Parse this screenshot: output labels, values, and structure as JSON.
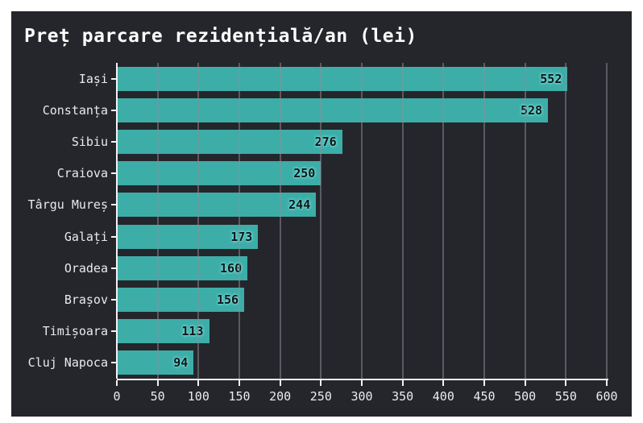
{
  "chart_data": {
    "type": "bar",
    "orientation": "horizontal",
    "title": "Preț parcare rezidențială/an (lei)",
    "categories": [
      "Iași",
      "Constanța",
      "Sibiu",
      "Craiova",
      "Târgu Mureș",
      "Galați",
      "Oradea",
      "Brașov",
      "Timișoara",
      "Cluj Napoca"
    ],
    "values": [
      552,
      528,
      276,
      250,
      244,
      173,
      160,
      156,
      113,
      94
    ],
    "xlabel": "",
    "ylabel": "",
    "xlim": [
      0,
      600
    ],
    "x_ticks": [
      0,
      50,
      100,
      150,
      200,
      250,
      300,
      350,
      400,
      450,
      500,
      550,
      600
    ],
    "grid": true,
    "legend": false,
    "colors": {
      "panel_background": "#24262c",
      "page_background": "#ffffff",
      "bar": "#3dada8",
      "gridline": "rgba(140,143,149,0.5)",
      "axis": "#f2f2f2",
      "title_text": "#fdfdfd",
      "tick_text": "#ececee",
      "category_text": "#e9eaec",
      "value_text": "#121419",
      "value_glow": "#74ddd7"
    }
  }
}
